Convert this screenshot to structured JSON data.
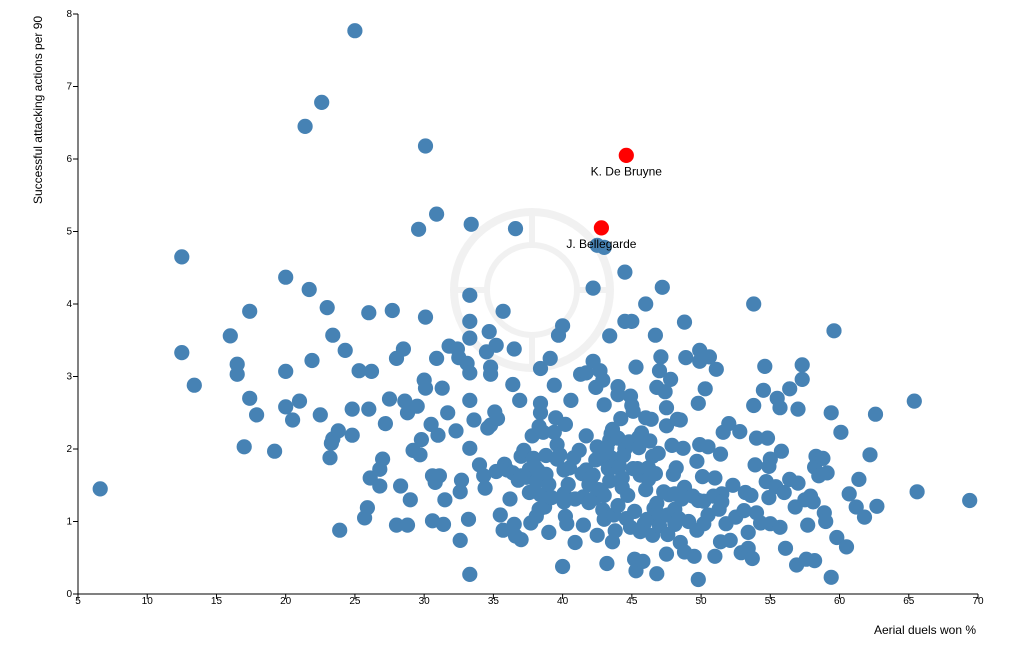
{
  "chart_data": {
    "type": "scatter",
    "xlabel": "Aerial duels won %",
    "ylabel": "Successful attacking actions per 90",
    "xlim": [
      5,
      70
    ],
    "ylim": [
      0,
      8
    ],
    "xticks": [
      5,
      10,
      15,
      20,
      25,
      30,
      35,
      40,
      45,
      50,
      55,
      60,
      65,
      70
    ],
    "yticks": [
      0,
      1,
      2,
      3,
      4,
      5,
      6,
      7,
      8
    ],
    "grid": false,
    "colors": {
      "points": "#4682b4",
      "highlight": "#ff0000",
      "watermark": "#e8e8e8"
    },
    "watermark_icon": "mb-logo-icon",
    "highlighted": [
      {
        "name": "K. De Bruyne",
        "x": 44.6,
        "y": 6.05
      },
      {
        "name": "J. Bellegarde",
        "x": 42.8,
        "y": 5.05
      }
    ],
    "points": [
      [
        6.6,
        1.45
      ],
      [
        12.5,
        4.65
      ],
      [
        12.5,
        3.33
      ],
      [
        13.4,
        2.88
      ],
      [
        16.0,
        3.56
      ],
      [
        16.5,
        3.17
      ],
      [
        16.5,
        3.03
      ],
      [
        17.0,
        2.03
      ],
      [
        17.4,
        3.9
      ],
      [
        17.4,
        2.7
      ],
      [
        17.9,
        2.47
      ],
      [
        19.2,
        1.97
      ],
      [
        20.0,
        4.37
      ],
      [
        20.0,
        3.07
      ],
      [
        20.0,
        2.58
      ],
      [
        20.5,
        2.4
      ],
      [
        21.0,
        2.66
      ],
      [
        21.4,
        6.45
      ],
      [
        21.7,
        4.2
      ],
      [
        21.9,
        3.22
      ],
      [
        22.5,
        2.47
      ],
      [
        22.6,
        6.78
      ],
      [
        23.0,
        3.95
      ],
      [
        23.2,
        1.88
      ],
      [
        23.3,
        2.08
      ],
      [
        23.4,
        2.14
      ],
      [
        23.4,
        3.57
      ],
      [
        23.8,
        2.25
      ],
      [
        23.9,
        0.88
      ],
      [
        24.3,
        3.36
      ],
      [
        24.8,
        2.19
      ],
      [
        24.8,
        2.55
      ],
      [
        25.0,
        7.77
      ],
      [
        25.3,
        3.08
      ],
      [
        25.7,
        1.05
      ],
      [
        25.9,
        1.19
      ],
      [
        26.0,
        2.55
      ],
      [
        26.0,
        3.88
      ],
      [
        26.1,
        1.6
      ],
      [
        26.2,
        3.07
      ],
      [
        26.8,
        1.49
      ],
      [
        26.8,
        1.72
      ],
      [
        27.0,
        1.86
      ],
      [
        27.2,
        2.35
      ],
      [
        27.5,
        2.69
      ],
      [
        27.7,
        3.91
      ],
      [
        28.0,
        3.25
      ],
      [
        28.0,
        0.95
      ],
      [
        28.3,
        1.49
      ],
      [
        28.5,
        3.38
      ],
      [
        28.6,
        2.66
      ],
      [
        28.8,
        2.5
      ],
      [
        28.8,
        0.95
      ],
      [
        29.0,
        1.3
      ],
      [
        29.2,
        1.98
      ],
      [
        29.5,
        2.59
      ],
      [
        29.6,
        5.03
      ],
      [
        29.7,
        1.92
      ],
      [
        29.8,
        2.13
      ],
      [
        30.0,
        2.95
      ],
      [
        30.1,
        3.82
      ],
      [
        30.1,
        2.84
      ],
      [
        30.1,
        6.18
      ],
      [
        30.5,
        2.34
      ],
      [
        30.6,
        1.63
      ],
      [
        30.6,
        1.01
      ],
      [
        30.8,
        1.54
      ],
      [
        30.9,
        3.25
      ],
      [
        30.9,
        5.24
      ],
      [
        31.0,
        2.19
      ],
      [
        31.1,
        1.63
      ],
      [
        31.3,
        2.84
      ],
      [
        31.4,
        0.96
      ],
      [
        31.5,
        1.3
      ],
      [
        31.7,
        2.5
      ],
      [
        31.8,
        3.42
      ],
      [
        32.3,
        2.25
      ],
      [
        32.4,
        3.38
      ],
      [
        32.5,
        3.26
      ],
      [
        32.6,
        0.74
      ],
      [
        32.6,
        1.41
      ],
      [
        32.7,
        1.57
      ],
      [
        33.1,
        3.18
      ],
      [
        33.2,
        1.03
      ],
      [
        33.3,
        0.27
      ],
      [
        33.3,
        2.01
      ],
      [
        33.3,
        2.67
      ],
      [
        33.3,
        3.05
      ],
      [
        33.3,
        3.53
      ],
      [
        33.3,
        3.76
      ],
      [
        33.3,
        4.12
      ],
      [
        33.4,
        5.1
      ],
      [
        33.6,
        2.4
      ],
      [
        34.0,
        1.78
      ],
      [
        34.3,
        1.63
      ],
      [
        34.4,
        1.46
      ],
      [
        34.5,
        3.34
      ],
      [
        34.6,
        2.29
      ],
      [
        34.7,
        3.62
      ],
      [
        34.8,
        3.13
      ],
      [
        34.8,
        3.03
      ],
      [
        34.8,
        2.33
      ],
      [
        35.1,
        2.51
      ],
      [
        35.2,
        3.43
      ],
      [
        35.2,
        1.69
      ],
      [
        35.3,
        2.42
      ],
      [
        35.5,
        1.09
      ],
      [
        35.7,
        3.9
      ],
      [
        35.7,
        0.88
      ],
      [
        35.8,
        1.79
      ],
      [
        36.0,
        1.71
      ],
      [
        36.2,
        1.31
      ],
      [
        36.4,
        1.67
      ],
      [
        36.4,
        2.89
      ],
      [
        36.5,
        3.38
      ],
      [
        36.5,
        0.96
      ],
      [
        36.6,
        0.8
      ],
      [
        36.6,
        5.04
      ],
      [
        36.8,
        1.57
      ],
      [
        36.9,
        2.67
      ],
      [
        37.0,
        1.9
      ],
      [
        37.0,
        1.63
      ],
      [
        37.0,
        0.75
      ],
      [
        37.2,
        1.98
      ],
      [
        37.4,
        1.61
      ],
      [
        37.6,
        1.72
      ],
      [
        37.6,
        1.4
      ],
      [
        37.7,
        0.98
      ],
      [
        37.8,
        2.18
      ],
      [
        37.9,
        1.87
      ],
      [
        38.0,
        1.76
      ],
      [
        38.1,
        1.55
      ],
      [
        38.1,
        1.07
      ],
      [
        38.2,
        1.71
      ],
      [
        38.3,
        2.31
      ],
      [
        38.3,
        1.17
      ],
      [
        38.4,
        1.37
      ],
      [
        38.4,
        2.63
      ],
      [
        38.4,
        3.11
      ],
      [
        38.4,
        2.5
      ],
      [
        38.6,
        2.23
      ],
      [
        38.7,
        1.2
      ],
      [
        38.8,
        1.65
      ],
      [
        38.8,
        1.91
      ],
      [
        39.0,
        0.85
      ],
      [
        39.0,
        1.51
      ],
      [
        39.1,
        3.25
      ],
      [
        39.2,
        1.33
      ],
      [
        39.4,
        2.88
      ],
      [
        39.4,
        2.23
      ],
      [
        39.5,
        2.43
      ],
      [
        39.6,
        1.86
      ],
      [
        39.6,
        2.06
      ],
      [
        39.7,
        3.57
      ],
      [
        39.8,
        1.92
      ],
      [
        40.0,
        0.38
      ],
      [
        40.0,
        3.7
      ],
      [
        40.1,
        1.27
      ],
      [
        40.1,
        1.71
      ],
      [
        40.1,
        1.38
      ],
      [
        40.2,
        1.07
      ],
      [
        40.2,
        2.34
      ],
      [
        40.3,
        0.97
      ],
      [
        40.4,
        1.51
      ],
      [
        40.5,
        1.74
      ],
      [
        40.6,
        2.67
      ],
      [
        40.8,
        1.88
      ],
      [
        40.9,
        0.71
      ],
      [
        40.9,
        1.31
      ],
      [
        41.2,
        1.98
      ],
      [
        41.3,
        3.03
      ],
      [
        41.4,
        1.66
      ],
      [
        41.5,
        0.95
      ],
      [
        41.5,
        1.34
      ],
      [
        41.7,
        1.71
      ],
      [
        41.7,
        3.05
      ],
      [
        41.7,
        2.18
      ],
      [
        41.9,
        1.51
      ],
      [
        41.9,
        1.26
      ],
      [
        42.1,
        1.61
      ],
      [
        42.2,
        3.21
      ],
      [
        42.2,
        1.64
      ],
      [
        42.2,
        4.22
      ],
      [
        42.3,
        1.32
      ],
      [
        42.4,
        2.85
      ],
      [
        42.4,
        1.85
      ],
      [
        42.5,
        0.81
      ],
      [
        42.5,
        2.03
      ],
      [
        42.5,
        4.81
      ],
      [
        42.6,
        1.44
      ],
      [
        42.7,
        3.08
      ],
      [
        42.8,
        1.95
      ],
      [
        42.8,
        1.42
      ],
      [
        42.9,
        1.87
      ],
      [
        42.9,
        1.16
      ],
      [
        42.9,
        2.95
      ],
      [
        43.0,
        4.78
      ],
      [
        43.0,
        1.36
      ],
      [
        43.0,
        2.61
      ],
      [
        43.0,
        1.03
      ],
      [
        43.1,
        2.0
      ],
      [
        43.2,
        2.02
      ],
      [
        43.2,
        0.42
      ],
      [
        43.3,
        1.73
      ],
      [
        43.4,
        1.56
      ],
      [
        43.4,
        3.56
      ],
      [
        43.4,
        2.12
      ],
      [
        43.5,
        1.88
      ],
      [
        43.5,
        2.21
      ],
      [
        43.6,
        2.27
      ],
      [
        43.6,
        1.76
      ],
      [
        43.6,
        0.72
      ],
      [
        43.7,
        1.09
      ],
      [
        43.7,
        1.75
      ],
      [
        43.8,
        0.87
      ],
      [
        43.9,
        1.82
      ],
      [
        44.0,
        1.22
      ],
      [
        44.0,
        2.86
      ],
      [
        44.0,
        2.75
      ],
      [
        44.0,
        2.15
      ],
      [
        44.1,
        1.76
      ],
      [
        44.2,
        2.42
      ],
      [
        44.3,
        1.47
      ],
      [
        44.3,
        1.6
      ],
      [
        44.4,
        1.91
      ],
      [
        44.5,
        2.0
      ],
      [
        44.5,
        3.76
      ],
      [
        44.5,
        4.44
      ],
      [
        44.6,
        1.04
      ],
      [
        44.7,
        1.36
      ],
      [
        44.8,
        2.1
      ],
      [
        44.9,
        0.92
      ],
      [
        44.9,
        2.73
      ],
      [
        45.0,
        3.76
      ],
      [
        45.0,
        2.6
      ],
      [
        45.1,
        1.73
      ],
      [
        45.1,
        2.52
      ],
      [
        45.2,
        0.48
      ],
      [
        45.2,
        1.14
      ],
      [
        45.3,
        3.13
      ],
      [
        45.3,
        0.32
      ],
      [
        45.4,
        1.73
      ],
      [
        45.5,
        2.16
      ],
      [
        45.5,
        2.02
      ],
      [
        45.6,
        1.64
      ],
      [
        45.6,
        0.86
      ],
      [
        45.7,
        2.22
      ],
      [
        45.8,
        0.45
      ],
      [
        45.9,
        0.97
      ],
      [
        46.0,
        4.0
      ],
      [
        46.0,
        2.43
      ],
      [
        46.0,
        1.44
      ],
      [
        46.1,
        1.73
      ],
      [
        46.1,
        1.03
      ],
      [
        46.2,
        1.74
      ],
      [
        46.2,
        1.58
      ],
      [
        46.3,
        2.11
      ],
      [
        46.4,
        2.41
      ],
      [
        46.5,
        0.81
      ],
      [
        46.5,
        1.9
      ],
      [
        46.6,
        1.18
      ],
      [
        46.7,
        3.57
      ],
      [
        46.7,
        1.66
      ],
      [
        46.8,
        0.28
      ],
      [
        46.8,
        1.25
      ],
      [
        46.8,
        2.85
      ],
      [
        46.9,
        1.94
      ],
      [
        47.0,
        3.08
      ],
      [
        47.0,
        1.09
      ],
      [
        47.0,
        0.94
      ],
      [
        47.1,
        3.27
      ],
      [
        47.2,
        4.23
      ],
      [
        47.3,
        1.41
      ],
      [
        47.4,
        2.79
      ],
      [
        47.5,
        0.55
      ],
      [
        47.5,
        2.57
      ],
      [
        47.5,
        2.32
      ],
      [
        47.6,
        1.09
      ],
      [
        47.6,
        0.82
      ],
      [
        47.7,
        1.37
      ],
      [
        47.8,
        2.96
      ],
      [
        47.9,
        2.05
      ],
      [
        48.0,
        1.65
      ],
      [
        48.1,
        0.96
      ],
      [
        48.1,
        1.17
      ],
      [
        48.1,
        1.38
      ],
      [
        48.2,
        1.74
      ],
      [
        48.3,
        2.41
      ],
      [
        48.4,
        1.04
      ],
      [
        48.5,
        0.71
      ],
      [
        48.5,
        2.4
      ],
      [
        48.6,
        1.31
      ],
      [
        48.7,
        2.01
      ],
      [
        48.8,
        0.58
      ],
      [
        48.8,
        3.75
      ],
      [
        48.8,
        1.47
      ],
      [
        48.9,
        3.26
      ],
      [
        49.1,
        1.0
      ],
      [
        49.4,
        1.35
      ],
      [
        49.5,
        0.52
      ],
      [
        49.7,
        0.88
      ],
      [
        49.7,
        1.83
      ],
      [
        49.8,
        1.29
      ],
      [
        49.8,
        0.2
      ],
      [
        49.8,
        2.63
      ],
      [
        49.9,
        3.36
      ],
      [
        49.9,
        3.21
      ],
      [
        49.9,
        2.06
      ],
      [
        50.1,
        1.62
      ],
      [
        50.2,
        0.97
      ],
      [
        50.2,
        1.28
      ],
      [
        50.3,
        2.83
      ],
      [
        50.5,
        1.09
      ],
      [
        50.5,
        2.03
      ],
      [
        50.6,
        3.27
      ],
      [
        50.9,
        1.35
      ],
      [
        51.0,
        1.6
      ],
      [
        51.0,
        0.52
      ],
      [
        51.1,
        3.1
      ],
      [
        51.3,
        1.17
      ],
      [
        51.4,
        0.72
      ],
      [
        51.4,
        1.93
      ],
      [
        51.5,
        1.38
      ],
      [
        51.5,
        1.27
      ],
      [
        51.6,
        2.23
      ],
      [
        51.8,
        0.97
      ],
      [
        52.0,
        2.35
      ],
      [
        52.1,
        0.74
      ],
      [
        52.3,
        1.5
      ],
      [
        52.5,
        1.06
      ],
      [
        52.8,
        2.24
      ],
      [
        52.9,
        0.57
      ],
      [
        53.1,
        1.15
      ],
      [
        53.2,
        1.4
      ],
      [
        53.4,
        0.63
      ],
      [
        53.4,
        0.85
      ],
      [
        53.6,
        1.36
      ],
      [
        53.7,
        0.49
      ],
      [
        53.8,
        2.6
      ],
      [
        53.8,
        4.0
      ],
      [
        53.9,
        1.78
      ],
      [
        54.0,
        1.12
      ],
      [
        54.0,
        2.15
      ],
      [
        54.3,
        0.98
      ],
      [
        54.5,
        2.81
      ],
      [
        54.6,
        3.14
      ],
      [
        54.7,
        1.55
      ],
      [
        54.8,
        2.15
      ],
      [
        54.9,
        1.76
      ],
      [
        54.9,
        1.33
      ],
      [
        55.0,
        0.97
      ],
      [
        55.0,
        1.86
      ],
      [
        55.4,
        1.48
      ],
      [
        55.5,
        2.7
      ],
      [
        55.7,
        0.92
      ],
      [
        55.7,
        2.57
      ],
      [
        55.8,
        1.97
      ],
      [
        56.0,
        1.4
      ],
      [
        56.1,
        0.63
      ],
      [
        56.4,
        2.83
      ],
      [
        56.4,
        1.58
      ],
      [
        56.8,
        1.2
      ],
      [
        56.9,
        0.4
      ],
      [
        57.0,
        1.53
      ],
      [
        57.0,
        2.55
      ],
      [
        57.3,
        3.16
      ],
      [
        57.3,
        2.96
      ],
      [
        57.5,
        1.3
      ],
      [
        57.6,
        0.48
      ],
      [
        57.7,
        0.95
      ],
      [
        57.9,
        1.35
      ],
      [
        58.1,
        1.27
      ],
      [
        58.2,
        1.75
      ],
      [
        58.2,
        0.46
      ],
      [
        58.3,
        1.9
      ],
      [
        58.5,
        1.63
      ],
      [
        58.8,
        1.87
      ],
      [
        58.9,
        1.12
      ],
      [
        59.0,
        1.0
      ],
      [
        59.1,
        1.67
      ],
      [
        59.4,
        2.5
      ],
      [
        59.4,
        0.23
      ],
      [
        59.6,
        3.63
      ],
      [
        59.8,
        0.78
      ],
      [
        60.1,
        2.23
      ],
      [
        60.5,
        0.65
      ],
      [
        60.7,
        1.38
      ],
      [
        61.2,
        1.2
      ],
      [
        61.4,
        1.58
      ],
      [
        61.8,
        1.06
      ],
      [
        62.2,
        1.92
      ],
      [
        62.6,
        2.48
      ],
      [
        62.7,
        1.21
      ],
      [
        65.4,
        2.66
      ],
      [
        65.6,
        1.41
      ],
      [
        69.4,
        1.29
      ]
    ]
  }
}
